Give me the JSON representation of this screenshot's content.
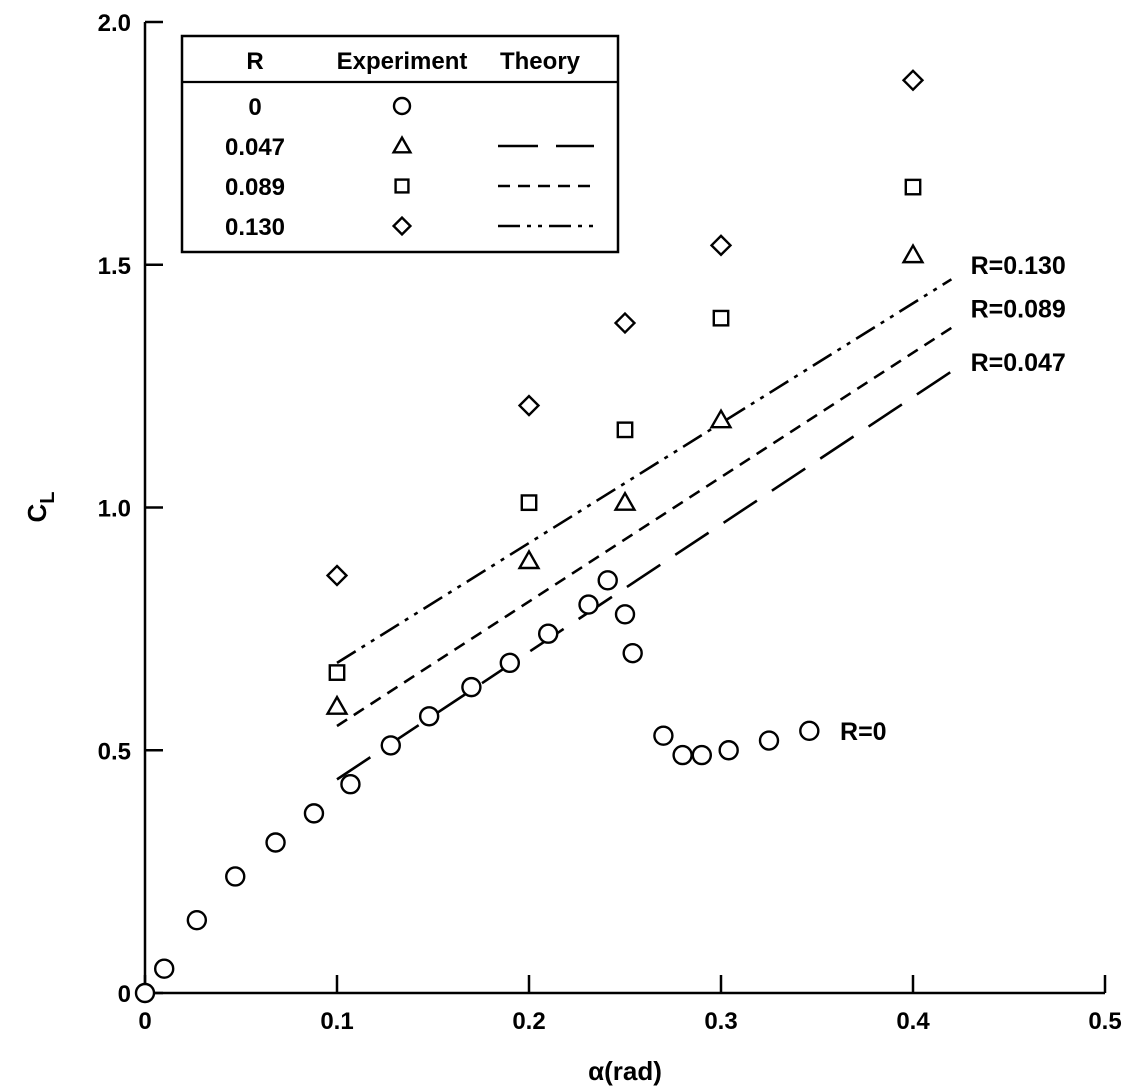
{
  "chart_data": {
    "type": "scatter",
    "xlabel": "α(rad)",
    "ylabel": "C",
    "ylabel_sub": "L",
    "xlim": [
      0,
      0.5
    ],
    "ylim": [
      0,
      2.0
    ],
    "x_ticks": [
      0,
      0.1,
      0.2,
      0.3,
      0.4,
      0.5
    ],
    "x_tick_labels": [
      "0",
      "0.1",
      "0.2",
      "0.3",
      "0.4",
      "0.5"
    ],
    "y_ticks": [
      0,
      0.5,
      1.0,
      1.5,
      2.0
    ],
    "y_tick_labels": [
      "0",
      "0.5",
      "1.0",
      "1.5",
      "2.0"
    ],
    "grid": false,
    "legend": {
      "position": "top-left",
      "headers": [
        "R",
        "Experiment",
        "Theory"
      ],
      "rows": [
        {
          "label": "0",
          "marker": "circle",
          "line": "none"
        },
        {
          "label": "0.047",
          "marker": "triangle",
          "line": "long-dash"
        },
        {
          "label": "0.089",
          "marker": "square",
          "line": "short-dash"
        },
        {
          "label": "0.130",
          "marker": "diamond",
          "line": "dash-dot-dot"
        }
      ]
    },
    "experiment_series": [
      {
        "name": "0",
        "marker": "circle",
        "x": [
          0.0,
          0.01,
          0.027,
          0.047,
          0.068,
          0.088,
          0.107,
          0.128,
          0.148,
          0.17,
          0.19,
          0.21,
          0.231,
          0.241,
          0.25,
          0.254,
          0.27,
          0.28,
          0.29,
          0.304,
          0.325,
          0.346
        ],
        "y": [
          0.0,
          0.05,
          0.15,
          0.24,
          0.31,
          0.37,
          0.43,
          0.51,
          0.57,
          0.63,
          0.68,
          0.74,
          0.8,
          0.85,
          0.78,
          0.7,
          0.53,
          0.49,
          0.49,
          0.5,
          0.52,
          0.54
        ]
      },
      {
        "name": "0.047",
        "marker": "triangle",
        "x": [
          0.1,
          0.2,
          0.25,
          0.3,
          0.4
        ],
        "y": [
          0.59,
          0.89,
          1.01,
          1.18,
          1.52
        ]
      },
      {
        "name": "0.089",
        "marker": "square",
        "x": [
          0.1,
          0.2,
          0.25,
          0.3,
          0.4
        ],
        "y": [
          0.66,
          1.01,
          1.16,
          1.39,
          1.66
        ]
      },
      {
        "name": "0.130",
        "marker": "diamond",
        "x": [
          0.1,
          0.2,
          0.25,
          0.3,
          0.4
        ],
        "y": [
          0.86,
          1.21,
          1.38,
          1.54,
          1.88
        ]
      }
    ],
    "theory_series": [
      {
        "name": "0.047",
        "dash": "long-dash",
        "x": [
          0.1,
          0.42
        ],
        "y": [
          0.44,
          1.28
        ]
      },
      {
        "name": "0.089",
        "dash": "short-dash",
        "x": [
          0.1,
          0.42
        ],
        "y": [
          0.55,
          1.37
        ]
      },
      {
        "name": "0.130",
        "dash": "dash-dot-dot",
        "x": [
          0.1,
          0.42
        ],
        "y": [
          0.68,
          1.47
        ]
      }
    ],
    "annotations": [
      {
        "text": "R=0.130",
        "x": 0.43,
        "y": 1.5
      },
      {
        "text": "R=0.089",
        "x": 0.43,
        "y": 1.41
      },
      {
        "text": "R=0.047",
        "x": 0.43,
        "y": 1.3
      },
      {
        "text": "R=0",
        "x": 0.362,
        "y": 0.54
      }
    ]
  }
}
